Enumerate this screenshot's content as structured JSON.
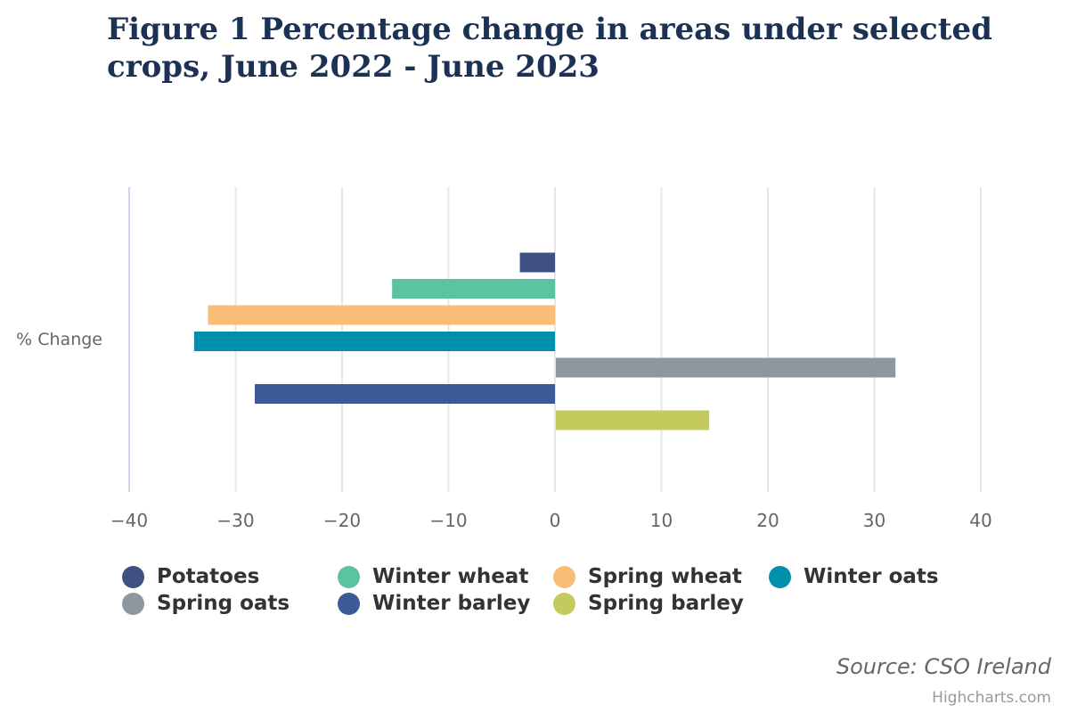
{
  "chart_data": {
    "type": "bar",
    "orientation": "horizontal",
    "title": "Figure 1 Percentage change in areas under selected crops, June 2022 - June 2023",
    "categories": [
      "% Change"
    ],
    "xlim": [
      -40,
      40
    ],
    "xticks": [
      -40,
      -30,
      -20,
      -10,
      0,
      10,
      20,
      30,
      40
    ],
    "xtick_labels": [
      "−40",
      "−30",
      "−20",
      "−10",
      "0",
      "10",
      "20",
      "30",
      "40"
    ],
    "grid": true,
    "legend_position": "bottom",
    "series": [
      {
        "name": "Potatoes",
        "values": [
          -3.3
        ],
        "color": "#3f5082"
      },
      {
        "name": "Winter wheat",
        "values": [
          -15.3
        ],
        "color": "#5bc2a2"
      },
      {
        "name": "Spring wheat",
        "values": [
          -32.6
        ],
        "color": "#f9bd77"
      },
      {
        "name": "Winter oats",
        "values": [
          -33.9
        ],
        "color": "#0090ab"
      },
      {
        "name": "Spring oats",
        "values": [
          31.9
        ],
        "color": "#8f979e"
      },
      {
        "name": "Winter barley",
        "values": [
          -28.2
        ],
        "color": "#3d5998"
      },
      {
        "name": "Spring barley",
        "values": [
          14.4
        ],
        "color": "#c5ca5c"
      }
    ]
  },
  "credits": {
    "source": "Source: CSO Ireland",
    "highcharts": "Highcharts.com"
  }
}
